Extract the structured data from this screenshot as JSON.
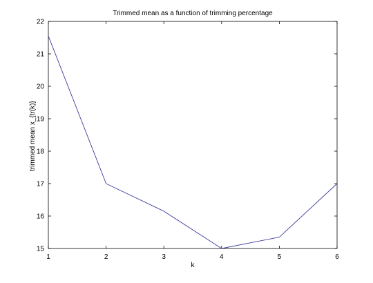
{
  "chart_data": {
    "type": "line",
    "title": "Trimmed mean as a function of trimming percentage",
    "xlabel": "k",
    "ylabel": "trimmed mean x_{tr(k)}",
    "xlim": [
      1,
      6
    ],
    "ylim": [
      15,
      22
    ],
    "xticks": [
      1,
      2,
      3,
      4,
      5,
      6
    ],
    "yticks": [
      15,
      16,
      17,
      18,
      19,
      20,
      21,
      22
    ],
    "grid": false,
    "series": [
      {
        "x": [
          1,
          2,
          3,
          4,
          5,
          6
        ],
        "values": [
          21.55,
          17.0,
          16.15,
          15.0,
          15.35,
          17.0
        ],
        "color": "#3c3c9a"
      }
    ]
  }
}
